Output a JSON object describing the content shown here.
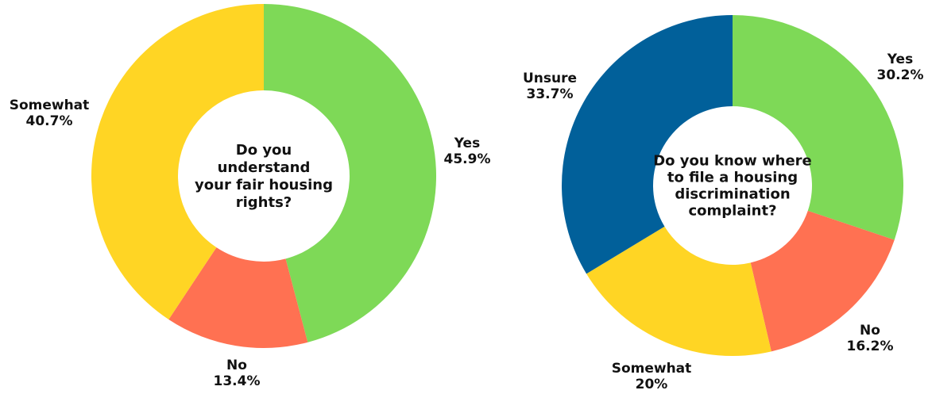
{
  "chart_data": [
    {
      "type": "pie",
      "donut": true,
      "center_text": [
        "Do you",
        "understand",
        "your fair housing",
        "rights?"
      ],
      "slices": [
        {
          "label": "Yes",
          "value": 45.9,
          "value_text": "45.9%",
          "color": "#7ed957"
        },
        {
          "label": "No",
          "value": 13.4,
          "value_text": "13.4%",
          "color": "#ff7152"
        },
        {
          "label": "Somewhat",
          "value": 40.7,
          "value_text": "40.7%",
          "color": "#ffd524"
        }
      ]
    },
    {
      "type": "pie",
      "donut": true,
      "center_text": [
        "Do you know where",
        "to file a housing",
        "discrimination",
        "complaint?"
      ],
      "slices": [
        {
          "label": "Yes",
          "value": 30.2,
          "value_text": "30.2%",
          "color": "#7ed957"
        },
        {
          "label": "No",
          "value": 16.2,
          "value_text": "16.2%",
          "color": "#ff7152"
        },
        {
          "label": "Somewhat",
          "value": 20,
          "value_text": "20%",
          "color": "#ffd524"
        },
        {
          "label": "Unsure",
          "value": 33.7,
          "value_text": "33.7%",
          "color": "#01609a"
        }
      ]
    }
  ]
}
